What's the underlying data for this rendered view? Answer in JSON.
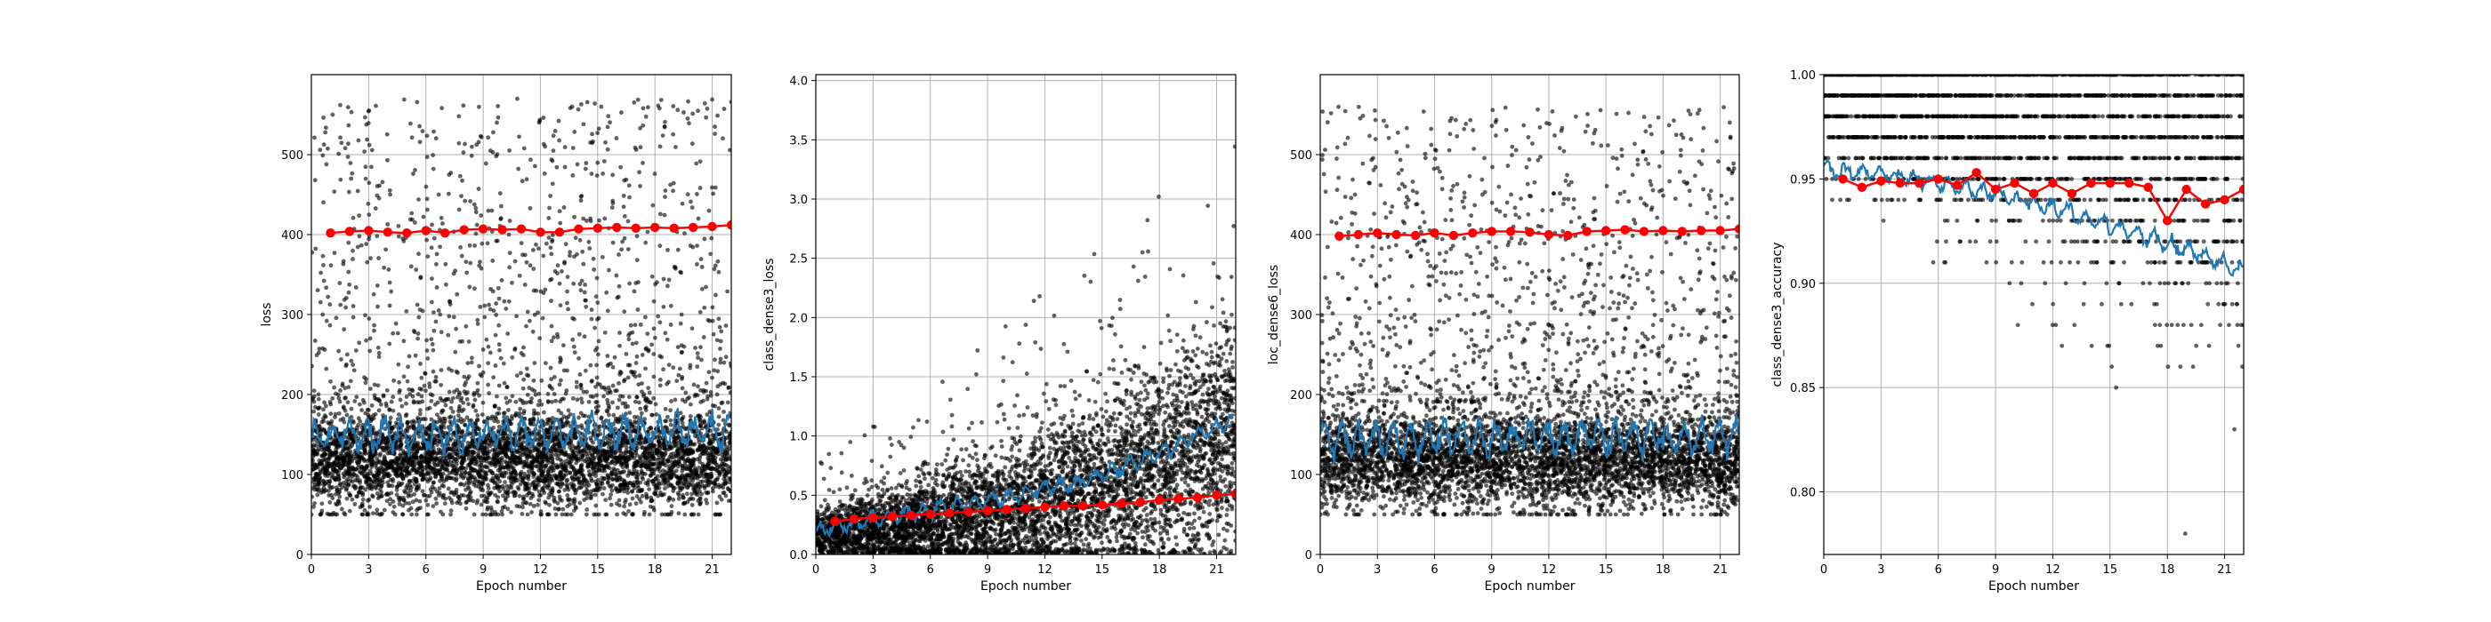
{
  "chart_data": [
    {
      "type": "scatter",
      "xlabel": "Epoch number",
      "ylabel": "loss",
      "xlim": [
        0,
        22
      ],
      "ylim": [
        0,
        600
      ],
      "xticks": [
        0,
        3,
        6,
        9,
        12,
        15,
        18,
        21
      ],
      "yticks": [
        0,
        100,
        200,
        300,
        400,
        500
      ],
      "grid": true,
      "colors": {
        "points": "#000000",
        "running_mean": "#1f77b4",
        "epoch_mean": "#ff0000"
      },
      "scatter_summary": {
        "count": 5500,
        "x_range": [
          0,
          22
        ],
        "dense_band": [
          50,
          190
        ],
        "sparse_range": [
          190,
          570
        ]
      },
      "running_mean": {
        "x_range": [
          0,
          22
        ],
        "baseline": [
          [
            0,
            148
          ],
          [
            22,
            155
          ]
        ],
        "oscillation": {
          "amplitude": 16,
          "period_epochs": 0.9
        }
      },
      "epoch_mean": {
        "x": [
          1,
          2,
          3,
          4,
          5,
          6,
          7,
          8,
          9,
          10,
          11,
          12,
          13,
          14,
          15,
          16,
          17,
          18,
          19,
          20,
          21,
          22
        ],
        "y": [
          402,
          404,
          405,
          403,
          402,
          405,
          402,
          406,
          407,
          406,
          407,
          403,
          403,
          407,
          408,
          409,
          408,
          409,
          408,
          409,
          410,
          412
        ]
      }
    },
    {
      "type": "scatter",
      "xlabel": "Epoch number",
      "ylabel": "class_dense3_loss",
      "xlim": [
        0,
        22
      ],
      "ylim": [
        0,
        4.05
      ],
      "xticks": [
        0,
        3,
        6,
        9,
        12,
        15,
        18,
        21
      ],
      "yticks": [
        0.0,
        0.5,
        1.0,
        1.5,
        2.0,
        2.5,
        3.0,
        3.5,
        4.0
      ],
      "grid": true,
      "colors": {
        "points": "#000000",
        "running_mean": "#1f77b4",
        "epoch_mean": "#ff0000"
      },
      "scatter_summary": {
        "count": 5500,
        "x_range": [
          0,
          22
        ],
        "center_start": 0.2,
        "center_end": 1.05,
        "spread_start": 0.15,
        "spread_end": 0.7,
        "max_outlier": 3.85
      },
      "running_mean": {
        "x_range": [
          0,
          22
        ],
        "baseline": [
          [
            0,
            0.2
          ],
          [
            5,
            0.35
          ],
          [
            10,
            0.48
          ],
          [
            14,
            0.62
          ],
          [
            18,
            0.85
          ],
          [
            22,
            1.15
          ]
        ],
        "oscillation": {
          "amplitude": 0.05,
          "period_epochs": 0.9
        }
      },
      "epoch_mean": {
        "x": [
          1,
          2,
          3,
          4,
          5,
          6,
          7,
          8,
          9,
          10,
          11,
          12,
          13,
          14,
          15,
          16,
          17,
          18,
          19,
          20,
          21,
          22
        ],
        "y": [
          0.28,
          0.3,
          0.31,
          0.32,
          0.33,
          0.34,
          0.35,
          0.36,
          0.37,
          0.38,
          0.39,
          0.4,
          0.41,
          0.41,
          0.42,
          0.43,
          0.44,
          0.46,
          0.47,
          0.48,
          0.5,
          0.51
        ]
      }
    },
    {
      "type": "scatter",
      "xlabel": "Epoch number",
      "ylabel": "loc_dense6_loss",
      "xlim": [
        0,
        22
      ],
      "ylim": [
        0,
        600
      ],
      "xticks": [
        0,
        3,
        6,
        9,
        12,
        15,
        18,
        21
      ],
      "yticks": [
        0,
        100,
        200,
        300,
        400,
        500
      ],
      "grid": true,
      "colors": {
        "points": "#000000",
        "running_mean": "#1f77b4",
        "epoch_mean": "#ff0000"
      },
      "scatter_summary": {
        "count": 5500,
        "x_range": [
          0,
          22
        ],
        "dense_band": [
          50,
          190
        ],
        "sparse_range": [
          190,
          560
        ]
      },
      "running_mean": {
        "x_range": [
          0,
          22
        ],
        "baseline": [
          [
            0,
            145
          ],
          [
            22,
            148
          ]
        ],
        "oscillation": {
          "amplitude": 16,
          "period_epochs": 0.9
        }
      },
      "epoch_mean": {
        "x": [
          1,
          2,
          3,
          4,
          5,
          6,
          7,
          8,
          9,
          10,
          11,
          12,
          13,
          14,
          15,
          16,
          17,
          18,
          19,
          20,
          21,
          22
        ],
        "y": [
          398,
          400,
          402,
          400,
          399,
          402,
          399,
          402,
          404,
          404,
          403,
          400,
          399,
          404,
          405,
          406,
          404,
          405,
          404,
          405,
          405,
          407
        ]
      }
    },
    {
      "type": "scatter",
      "xlabel": "Epoch number",
      "ylabel": "class_dense3_accuracy",
      "xlim": [
        0,
        22
      ],
      "ylim": [
        0.77,
        1.0
      ],
      "xticks": [
        0,
        3,
        6,
        9,
        12,
        15,
        18,
        21
      ],
      "yticks": [
        0.8,
        0.85,
        0.9,
        0.95,
        1.0
      ],
      "grid": true,
      "colors": {
        "points": "#000000",
        "running_mean": "#1f77b4",
        "epoch_mean": "#ff0000"
      },
      "scatter_summary": {
        "count": 2600,
        "x_range": [
          0,
          22
        ],
        "value_levels": [
          1.0,
          0.99,
          0.98,
          0.97,
          0.96,
          0.95,
          0.94,
          0.93,
          0.92,
          0.91,
          0.9,
          0.89,
          0.88,
          0.87,
          0.86,
          0.85,
          0.84,
          0.83,
          0.82,
          0.81,
          0.8,
          0.79,
          0.78
        ]
      },
      "running_mean": {
        "x_range": [
          0,
          22
        ],
        "baseline": [
          [
            0,
            0.955
          ],
          [
            3,
            0.952
          ],
          [
            6,
            0.948
          ],
          [
            9,
            0.943
          ],
          [
            12,
            0.936
          ],
          [
            15,
            0.928
          ],
          [
            18,
            0.919
          ],
          [
            20,
            0.913
          ],
          [
            22,
            0.905
          ]
        ],
        "oscillation": {
          "amplitude": 0.003,
          "period_epochs": 0.9
        }
      },
      "epoch_mean": {
        "x": [
          1,
          2,
          3,
          4,
          5,
          6,
          7,
          8,
          9,
          10,
          11,
          12,
          13,
          14,
          15,
          16,
          17,
          18,
          19,
          20,
          21,
          22
        ],
        "y": [
          0.95,
          0.946,
          0.949,
          0.948,
          0.948,
          0.95,
          0.947,
          0.953,
          0.945,
          0.948,
          0.943,
          0.948,
          0.943,
          0.948,
          0.948,
          0.948,
          0.946,
          0.93,
          0.945,
          0.938,
          0.94,
          0.945
        ]
      }
    }
  ]
}
